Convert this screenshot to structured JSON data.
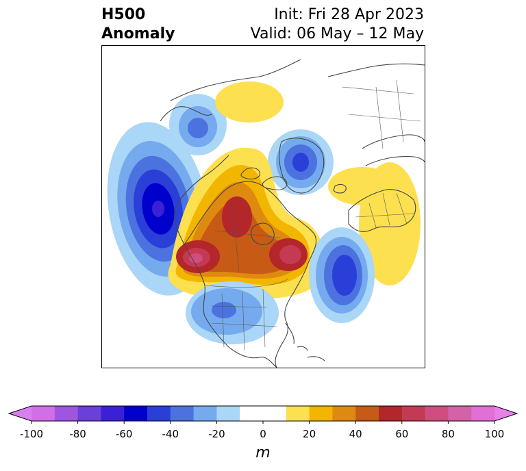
{
  "title": {
    "variable": "H500",
    "subtitle": "Anomaly",
    "init": "Init: Fri 28 Apr 2023",
    "valid": "Valid: 06 May – 12 May"
  },
  "colorbar": {
    "unit": "m",
    "min": -100,
    "max": 100,
    "extend": "both",
    "ticks": [
      -100,
      -80,
      -60,
      -40,
      -20,
      0,
      20,
      40,
      60,
      80,
      100
    ],
    "tick_labels": [
      "-100",
      "-80",
      "-60",
      "-40",
      "-20",
      "0",
      "20",
      "40",
      "60",
      "80",
      "100"
    ],
    "levels": [
      -100,
      -90,
      -80,
      -70,
      -60,
      -50,
      -40,
      -30,
      -20,
      -10,
      10,
      20,
      30,
      40,
      50,
      60,
      70,
      80,
      90,
      100
    ],
    "colors": [
      "#d16fe6",
      "#9f55e0",
      "#6b3fd9",
      "#3c20d6",
      "#0000cc",
      "#2a3fd8",
      "#4c72e0",
      "#76aaee",
      "#aad6f7",
      "#ffffff",
      "#fde04f",
      "#f2b600",
      "#de8a10",
      "#c75a15",
      "#b3262a",
      "#c43a55",
      "#d14d7f",
      "#d462a9",
      "#e06fd7"
    ],
    "under_color": "#d880f0",
    "over_color": "#e880e8"
  },
  "map": {
    "projection": "polar-stereographic",
    "region": "North America"
  }
}
